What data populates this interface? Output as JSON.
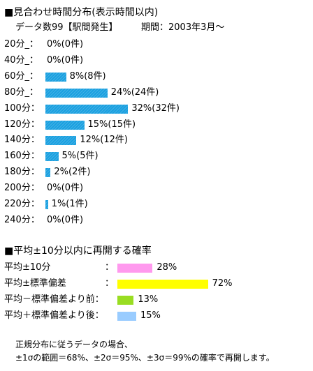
{
  "section1": {
    "title": "■見合わせ時間分布(表示時間以内)",
    "subtitle_count": "データ数99【駅間発生】",
    "subtitle_period": "期間：2003年3月～"
  },
  "chart_data": [
    {
      "type": "bar",
      "orientation": "horizontal",
      "categories": [
        "20分_：",
        "40分_：",
        "60分_：",
        "80分_：",
        "100分：",
        "120分：",
        "140分：",
        "160分：",
        "180分：",
        "200分：",
        "220分：",
        "240分："
      ],
      "values": [
        0,
        0,
        8,
        24,
        32,
        15,
        12,
        5,
        2,
        0,
        1,
        0
      ],
      "labels": [
        "0%(0件)",
        "0%(0件)",
        "8%(8件)",
        "24%(24件)",
        "32%(32件)",
        "15%(15件)",
        "12%(12件)",
        "5%(5件)",
        "2%(2件)",
        "0%(0件)",
        "1%(1件)",
        "0%(0件)"
      ],
      "bar_color": "#1aa0e0"
    },
    {
      "type": "bar",
      "orientation": "horizontal",
      "title": "■平均±10分以内に再開する確率",
      "categories": [
        "平均±10分",
        "平均±標準偏差",
        "平均－標準偏差より前：",
        "平均＋標準偏差より後："
      ],
      "separators": [
        "：",
        "：",
        "",
        ""
      ],
      "values": [
        28,
        72,
        13,
        15
      ],
      "labels": [
        "28%",
        "72%",
        "13%",
        "15%"
      ],
      "colors": [
        "#ff99ee",
        "#ffff00",
        "#99dd22",
        "#99ccff"
      ]
    }
  ],
  "footnote": {
    "line1": "正規分布に従うデータの場合、",
    "line2": "±1σの範囲＝68%、±2σ＝95%、±3σ＝99%の確率で再開します。"
  }
}
